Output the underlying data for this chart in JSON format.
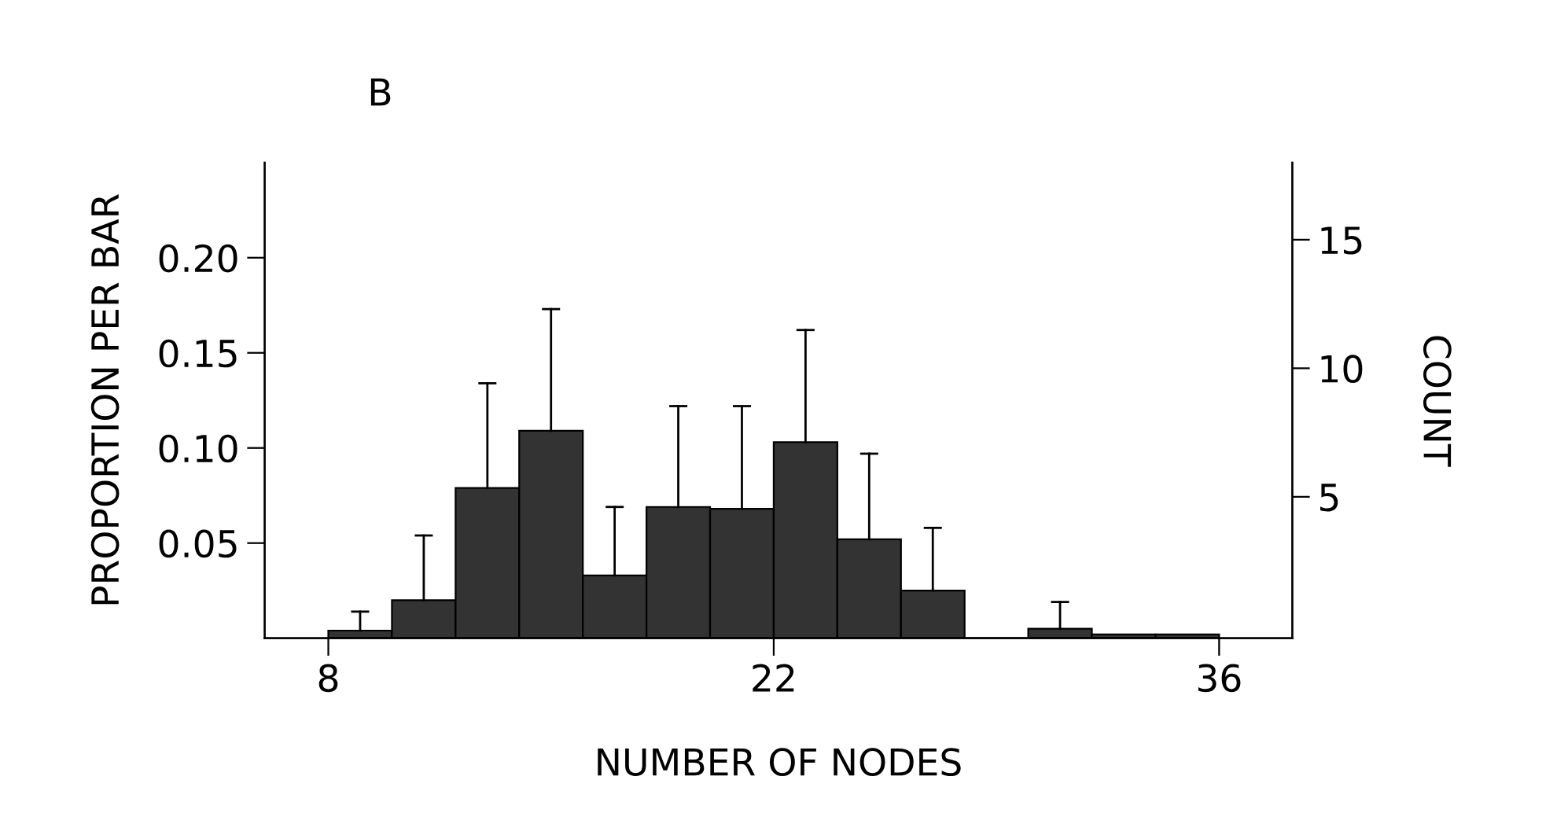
{
  "chart_data": {
    "type": "histogram",
    "title": "B",
    "xlabel": "NUMBER OF NODES",
    "ylabel": "PROPORTION PER BAR",
    "y2label": "COUNT",
    "bins": [
      8,
      10,
      12,
      14,
      16,
      18,
      20,
      22,
      24,
      26,
      28,
      30,
      32,
      34,
      36
    ],
    "values": [
      0.004,
      0.02,
      0.079,
      0.109,
      0.033,
      0.069,
      0.068,
      0.103,
      0.052,
      0.025,
      0.0,
      0.005,
      0.002,
      0.002
    ],
    "errors": [
      [
        0.004,
        0.014
      ],
      [
        0.02,
        0.054
      ],
      [
        0.079,
        0.134
      ],
      [
        0.109,
        0.173
      ],
      [
        0.033,
        0.069
      ],
      [
        0.069,
        0.122
      ],
      [
        0.068,
        0.122
      ],
      [
        0.103,
        0.162
      ],
      [
        0.052,
        0.097
      ],
      [
        0.025,
        0.058
      ],
      null,
      [
        0.005,
        0.019
      ],
      null,
      null
    ],
    "color": "#333333",
    "xlim": [
      6,
      38.3
    ],
    "xticks": [
      8,
      22,
      36
    ],
    "ylim": [
      0,
      0.25
    ],
    "yticks": [
      {
        "value": 0.05,
        "label": "0.05"
      },
      {
        "value": 0.1,
        "label": "0.10"
      },
      {
        "value": 0.15,
        "label": "0.15"
      },
      {
        "value": 0.2,
        "label": "0.20"
      }
    ],
    "y2lim": [
      -0.5,
      18
    ],
    "y2ticks": [
      5,
      10,
      15
    ],
    "grid": false,
    "legend": false
  }
}
